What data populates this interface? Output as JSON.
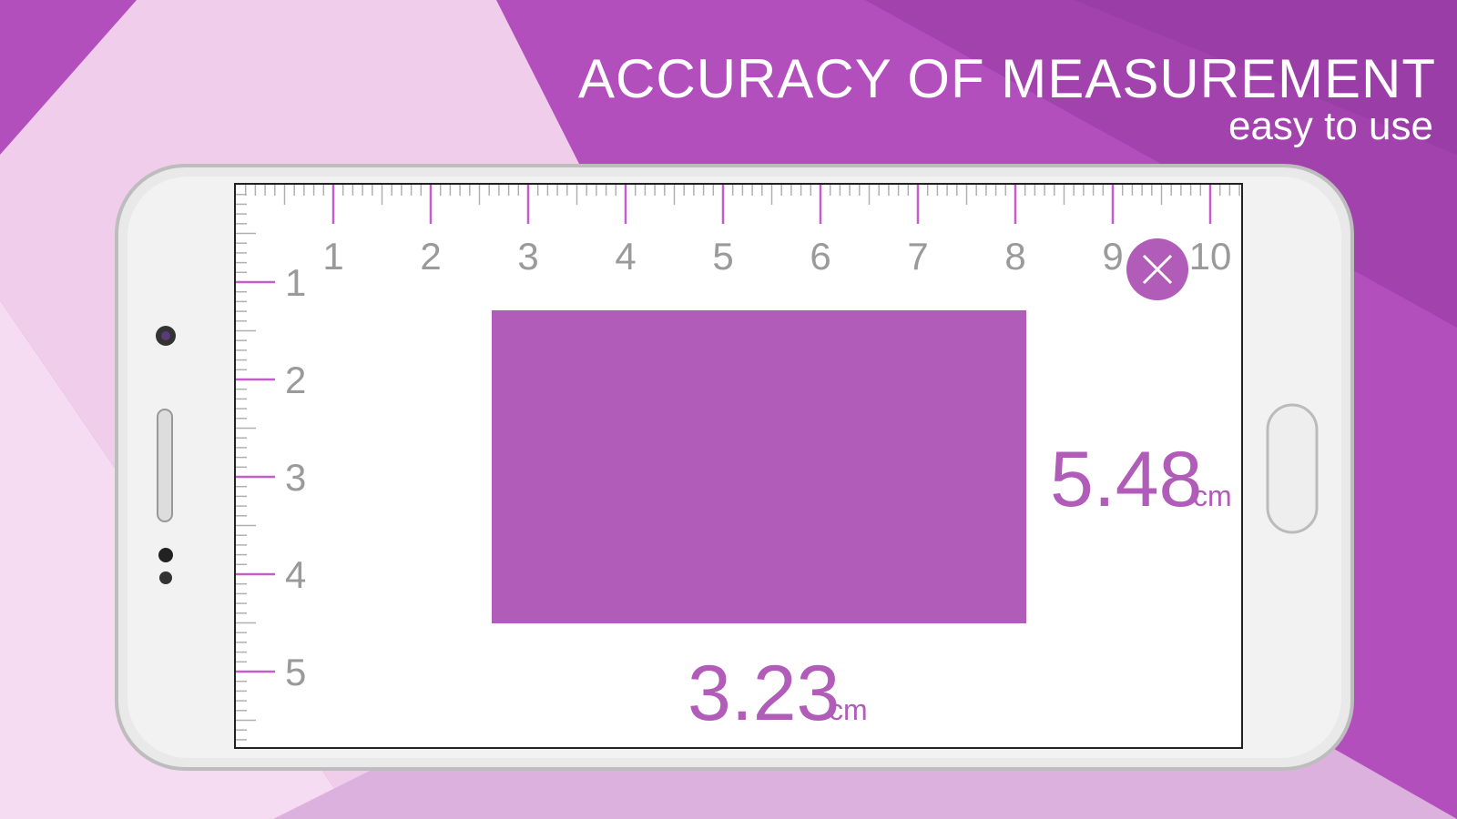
{
  "header": {
    "title": "ACCURACY OF MEASUREMENT",
    "subtitle": "easy to use"
  },
  "ruler": {
    "horizontal_labels": [
      1,
      2,
      3,
      4,
      5,
      6,
      7,
      8,
      9,
      10
    ],
    "vertical_labels": [
      1,
      2,
      3,
      4,
      5
    ]
  },
  "measurements": {
    "right": {
      "value": 5.48,
      "unit": "cm"
    },
    "bottom": {
      "value": 3.23,
      "unit": "cm"
    }
  }
}
